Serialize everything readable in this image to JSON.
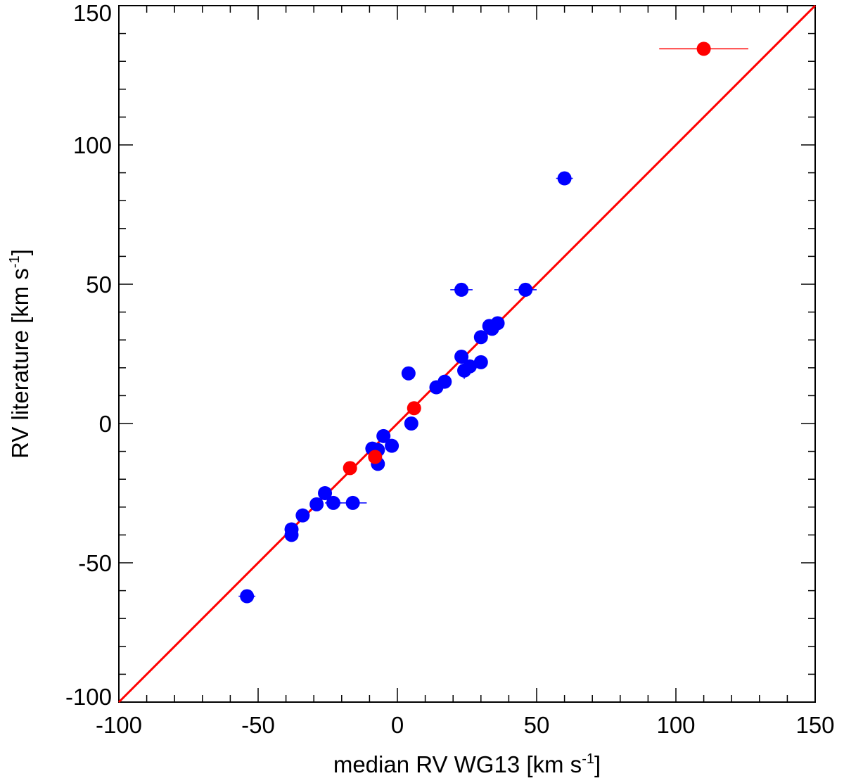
{
  "chart_data": {
    "type": "scatter",
    "xlabel": {
      "main": "median RV WG13 [km s",
      "sup": "-1",
      "close": "]"
    },
    "ylabel": {
      "main": "RV literature [km s",
      "sup": "-1",
      "close": "]"
    },
    "xlim": [
      -100,
      150
    ],
    "ylim": [
      -100,
      150
    ],
    "xticks": [
      -100,
      -50,
      0,
      50,
      100,
      150
    ],
    "yticks": [
      -100,
      -50,
      0,
      50,
      100,
      150
    ],
    "xtick_labels": [
      "-100",
      "-50",
      "0",
      "50",
      "100",
      "150"
    ],
    "ytick_labels": [
      "-100",
      "-50",
      "0",
      "50",
      "100",
      "150"
    ],
    "minor_tick_step": 10,
    "grid": false,
    "reference_line": {
      "type": "identity",
      "color": "#ff0000",
      "from": [
        -100,
        -100
      ],
      "to": [
        150,
        150
      ]
    },
    "series": [
      {
        "color": "#0000ff",
        "points": [
          {
            "x": -54,
            "y": -62,
            "xerr": 3
          },
          {
            "x": -38,
            "y": -38,
            "xerr": 1
          },
          {
            "x": -38,
            "y": -40,
            "xerr": 1
          },
          {
            "x": -34,
            "y": -33,
            "xerr": 1
          },
          {
            "x": -29,
            "y": -29,
            "xerr": 2
          },
          {
            "x": -26,
            "y": -25,
            "xerr": 2
          },
          {
            "x": -23,
            "y": -28.5,
            "xerr": 3
          },
          {
            "x": -16,
            "y": -28.5,
            "xerr": 5
          },
          {
            "x": -9,
            "y": -9,
            "xerr": 1
          },
          {
            "x": -7,
            "y": -9.5,
            "xerr": 1
          },
          {
            "x": -7,
            "y": -14.5,
            "xerr": 1
          },
          {
            "x": -5,
            "y": -4.5,
            "xerr": 1
          },
          {
            "x": -2,
            "y": -8,
            "xerr": 1
          },
          {
            "x": 4,
            "y": 18,
            "xerr": 1
          },
          {
            "x": 5,
            "y": 0,
            "xerr": 2
          },
          {
            "x": 14,
            "y": 13,
            "xerr": 2
          },
          {
            "x": 17,
            "y": 15,
            "xerr": 2
          },
          {
            "x": 23,
            "y": 48,
            "xerr": 4
          },
          {
            "x": 23,
            "y": 24,
            "xerr": 1
          },
          {
            "x": 24,
            "y": 19,
            "xerr": 2,
            "yerr": 3
          },
          {
            "x": 26,
            "y": 20.5,
            "xerr": 2
          },
          {
            "x": 30,
            "y": 31,
            "xerr": 1
          },
          {
            "x": 30,
            "y": 22,
            "xerr": 1
          },
          {
            "x": 33,
            "y": 35,
            "xerr": 1
          },
          {
            "x": 34,
            "y": 34,
            "xerr": 1
          },
          {
            "x": 36,
            "y": 36,
            "xerr": 1
          },
          {
            "x": 46,
            "y": 48,
            "xerr": 4
          },
          {
            "x": 60,
            "y": 88,
            "xerr": 3
          }
        ]
      },
      {
        "color": "#ff0000",
        "points": [
          {
            "x": -17,
            "y": -16,
            "xerr": 1
          },
          {
            "x": -8,
            "y": -12,
            "xerr": 1
          },
          {
            "x": 6,
            "y": 5.5,
            "xerr": 2
          },
          {
            "x": 110,
            "y": 134.5,
            "xerr": 16
          }
        ]
      }
    ]
  }
}
